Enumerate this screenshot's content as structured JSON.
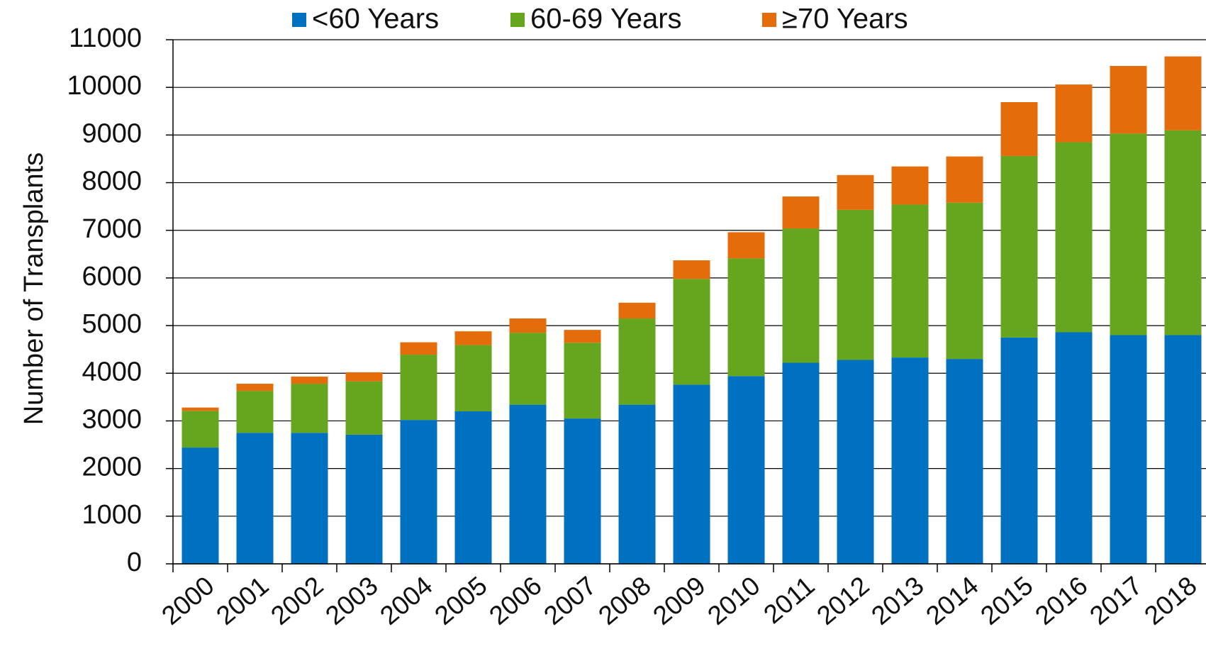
{
  "chart_data": {
    "type": "stacked_bar",
    "y_label": "Number of Transplants",
    "categories": [
      "2000",
      "2001",
      "2002",
      "2003",
      "2004",
      "2005",
      "2006",
      "2007",
      "2008",
      "2009",
      "2010",
      "2011",
      "2012",
      "2013",
      "2014",
      "2015",
      "2016",
      "2017",
      "2018"
    ],
    "series": [
      {
        "name": "<60 Years",
        "color": "#0070c0",
        "values": [
          2440,
          2750,
          2750,
          2710,
          3020,
          3200,
          3340,
          3050,
          3340,
          3760,
          3940,
          4220,
          4280,
          4330,
          4300,
          4750,
          4860,
          4800,
          4800
        ]
      },
      {
        "name": "60-69 Years",
        "color": "#66a61e",
        "values": [
          770,
          880,
          1030,
          1120,
          1370,
          1390,
          1510,
          1590,
          1810,
          2220,
          2470,
          2820,
          3150,
          3210,
          3280,
          3810,
          3990,
          4230,
          4300
        ]
      },
      {
        "name": "≥70 Years",
        "color": "#e46c0a",
        "values": [
          70,
          150,
          150,
          190,
          260,
          290,
          300,
          270,
          330,
          390,
          550,
          670,
          730,
          800,
          970,
          1130,
          1210,
          1420,
          1550
        ]
      }
    ],
    "ylim": [
      0,
      11000
    ],
    "yticks": [
      0,
      1000,
      2000,
      3000,
      4000,
      5000,
      6000,
      7000,
      8000,
      9000,
      10000,
      11000
    ],
    "grid": true,
    "legend": "top"
  }
}
